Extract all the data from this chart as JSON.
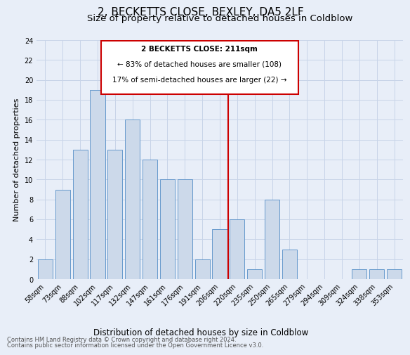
{
  "title": "2, BECKETTS CLOSE, BEXLEY, DA5 2LF",
  "subtitle": "Size of property relative to detached houses in Coldblow",
  "xlabel": "Distribution of detached houses by size in Coldblow",
  "ylabel": "Number of detached properties",
  "footnote1": "Contains HM Land Registry data © Crown copyright and database right 2024.",
  "footnote2": "Contains public sector information licensed under the Open Government Licence v3.0.",
  "categories": [
    "58sqm",
    "73sqm",
    "88sqm",
    "102sqm",
    "117sqm",
    "132sqm",
    "147sqm",
    "161sqm",
    "176sqm",
    "191sqm",
    "206sqm",
    "220sqm",
    "235sqm",
    "250sqm",
    "265sqm",
    "279sqm",
    "294sqm",
    "309sqm",
    "324sqm",
    "338sqm",
    "353sqm"
  ],
  "values": [
    2,
    9,
    13,
    19,
    13,
    16,
    12,
    10,
    10,
    2,
    5,
    6,
    1,
    8,
    3,
    0,
    0,
    0,
    1,
    1,
    1
  ],
  "bar_color": "#ccd9ea",
  "bar_edge_color": "#6699cc",
  "grid_color": "#c8d4e8",
  "background_color": "#e8eef8",
  "annotation_box_color": "#cc0000",
  "vline_color": "#cc0000",
  "vline_x": 10.5,
  "annotation_title": "2 BECKETTS CLOSE: 211sqm",
  "annotation_line1": "← 83% of detached houses are smaller (108)",
  "annotation_line2": "17% of semi-detached houses are larger (22) →",
  "ylim": [
    0,
    24
  ],
  "yticks": [
    0,
    2,
    4,
    6,
    8,
    10,
    12,
    14,
    16,
    18,
    20,
    22,
    24
  ],
  "title_fontsize": 11,
  "subtitle_fontsize": 9.5,
  "ylabel_fontsize": 8,
  "xlabel_fontsize": 8.5,
  "tick_fontsize": 7,
  "annotation_fontsize": 7.5,
  "footnote_fontsize": 6
}
